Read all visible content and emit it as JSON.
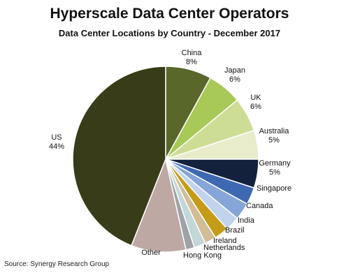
{
  "chart_data": {
    "type": "pie",
    "title": "Hyperscale Data Center Operators",
    "subtitle": "Data Center Locations by Country - December 2017",
    "source": "Source: Synergy Research Group",
    "slices": [
      {
        "label": "China",
        "value": 8,
        "value_label": "8%",
        "color": "#59672a"
      },
      {
        "label": "Japan",
        "value": 6,
        "value_label": "6%",
        "color": "#a8c957"
      },
      {
        "label": "UK",
        "value": 6,
        "value_label": "6%",
        "color": "#cedd96"
      },
      {
        "label": "Australia",
        "value": 5,
        "value_label": "5%",
        "color": "#e8eccb"
      },
      {
        "label": "Germany",
        "value": 5,
        "value_label": "5%",
        "color": "#13213d"
      },
      {
        "label": "Singapore",
        "value": 3,
        "value_label": "",
        "color": "#3f68b2"
      },
      {
        "label": "Canada",
        "value": 3,
        "value_label": "",
        "color": "#86a5d8"
      },
      {
        "label": "India",
        "value": 2.5,
        "value_label": "",
        "color": "#c2d3ee"
      },
      {
        "label": "Brazil",
        "value": 2.5,
        "value_label": "",
        "color": "#c49c18"
      },
      {
        "label": "Ireland",
        "value": 2,
        "value_label": "",
        "color": "#d2bd96"
      },
      {
        "label": "Netherlands",
        "value": 2,
        "value_label": "",
        "color": "#c3d6d8"
      },
      {
        "label": "Hong Kong",
        "value": 1.5,
        "value_label": "",
        "color": "#9ea3a5"
      },
      {
        "label": "Other",
        "value": 9.5,
        "value_label": "",
        "color": "#bea8a4"
      },
      {
        "label": "US",
        "value": 44,
        "value_label": "44%",
        "color": "#383c18"
      }
    ]
  }
}
